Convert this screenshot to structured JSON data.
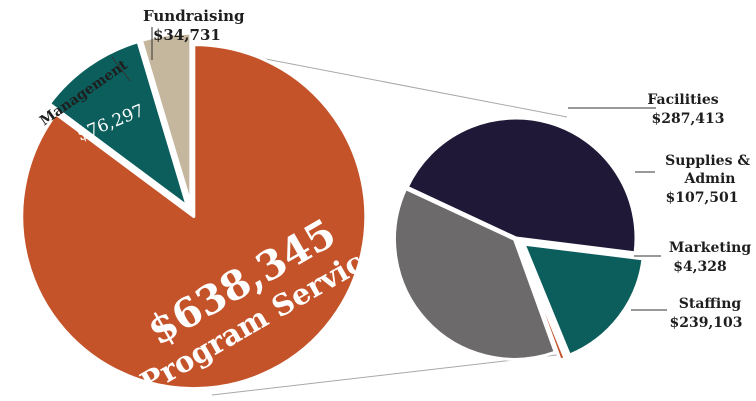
{
  "chart_data": [
    {
      "type": "pie",
      "slices": [
        {
          "label": "Program Services",
          "value_text": "$638,345",
          "value": 638345,
          "color": "#c4532a"
        },
        {
          "label": "Management",
          "value_text": "$76,297",
          "value": 76297,
          "color": "#0b5e5c"
        },
        {
          "label": "Fundraising",
          "value_text": "$34,731",
          "value": 34731,
          "color": "#c4b79e"
        }
      ]
    },
    {
      "type": "pie",
      "slices": [
        {
          "label": "Facilities",
          "value_text": "$287,413",
          "value": 287413,
          "color": "#1f1837"
        },
        {
          "label": "Supplies & Admin",
          "value_text": "$107,501",
          "value": 107501,
          "color": "#0b5e5c"
        },
        {
          "label": "Marketing",
          "value_text": "$4,328",
          "value": 4328,
          "color": "#c4532a"
        },
        {
          "label": "Staffing",
          "value_text": "$239,103",
          "value": 239103,
          "color": "#6d6a6b"
        }
      ]
    }
  ]
}
